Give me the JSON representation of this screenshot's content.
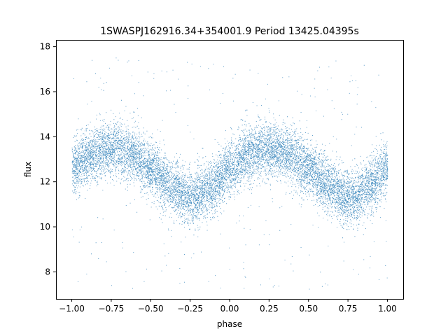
{
  "chart_data": {
    "type": "scatter",
    "title": "1SWASPJ162916.34+354001.9 Period 13425.04395s",
    "xlabel": "phase",
    "ylabel": "flux",
    "xlim": [
      -1.1,
      1.1
    ],
    "ylim": [
      6.8,
      18.3
    ],
    "xticks": [
      -1.0,
      -0.75,
      -0.5,
      -0.25,
      0.0,
      0.25,
      0.5,
      0.75,
      1.0
    ],
    "xtick_labels": [
      "−1.00",
      "−0.75",
      "−0.50",
      "−0.25",
      "0.00",
      "0.25",
      "0.50",
      "0.75",
      "1.00"
    ],
    "yticks": [
      8,
      10,
      12,
      14,
      16,
      18
    ],
    "ytick_labels": [
      "8",
      "10",
      "12",
      "14",
      "16",
      "18"
    ],
    "grid": false,
    "legend": "none",
    "point_color": "#1f77b4",
    "series": [
      {
        "phase": [
          -1.0,
          -0.875,
          -0.75,
          -0.625,
          -0.5,
          -0.375,
          -0.25,
          -0.125,
          0.0,
          0.125,
          0.25,
          0.375,
          0.5,
          0.625,
          0.75,
          0.875,
          1.0
        ],
        "flux_mean": [
          12.6,
          13.2,
          13.5,
          13.3,
          12.6,
          11.8,
          11.3,
          11.7,
          12.6,
          13.2,
          13.5,
          13.2,
          12.6,
          11.8,
          11.3,
          11.8,
          12.6
        ],
        "flux_spread": 1.3,
        "n_points_approx": 60000
      }
    ]
  }
}
